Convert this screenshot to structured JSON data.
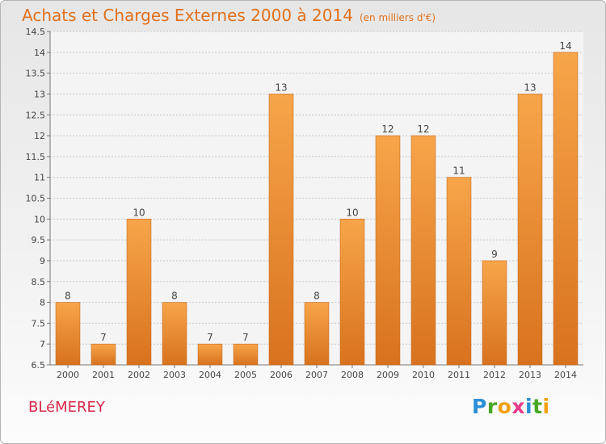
{
  "title": {
    "main": "Achats et Charges Externes 2000 à 2014",
    "unit": "(en milliers d'€)"
  },
  "footer": {
    "commune": "BLéMEREY",
    "logo_letters": [
      "P",
      "r",
      "o",
      "x",
      "i",
      "t",
      "i"
    ],
    "logo_colors": [
      "#2b8fd8",
      "#48a823",
      "#f0a010",
      "#e83c8c",
      "#2b8fd8",
      "#48a823",
      "#f0a010"
    ]
  },
  "colors": {
    "accent": "#e0701c",
    "bar_top": "#f7a54a",
    "bar_bottom": "#d8721e",
    "commune": "#d6284a"
  },
  "chart_data": {
    "type": "bar",
    "title": "Achats et Charges Externes 2000 à 2014",
    "xlabel": "",
    "ylabel": "",
    "categories": [
      "2000",
      "2001",
      "2002",
      "2003",
      "2004",
      "2005",
      "2006",
      "2007",
      "2008",
      "2009",
      "2010",
      "2011",
      "2012",
      "2013",
      "2014"
    ],
    "values": [
      8,
      7,
      10,
      8,
      7,
      7,
      13,
      8,
      10,
      12,
      12,
      11,
      9,
      13,
      14
    ],
    "value_labels": [
      "8",
      "7",
      "10",
      "8",
      "7",
      "7",
      "13",
      "8",
      "10",
      "12",
      "12",
      "11",
      "9",
      "13",
      "14"
    ],
    "ylim": [
      6.5,
      14.5
    ],
    "yticks": [
      6.5,
      7,
      7.5,
      8,
      8.5,
      9,
      9.5,
      10,
      10.5,
      11,
      11.5,
      12,
      12.5,
      13,
      13.5,
      14,
      14.5
    ],
    "ytick_labels": [
      "6.5",
      "7",
      "7.5",
      "8",
      "8.5",
      "9",
      "9.5",
      "10",
      "10.5",
      "11",
      "11.5",
      "12",
      "12.5",
      "13",
      "13.5",
      "14",
      "14.5"
    ],
    "grid": true
  }
}
